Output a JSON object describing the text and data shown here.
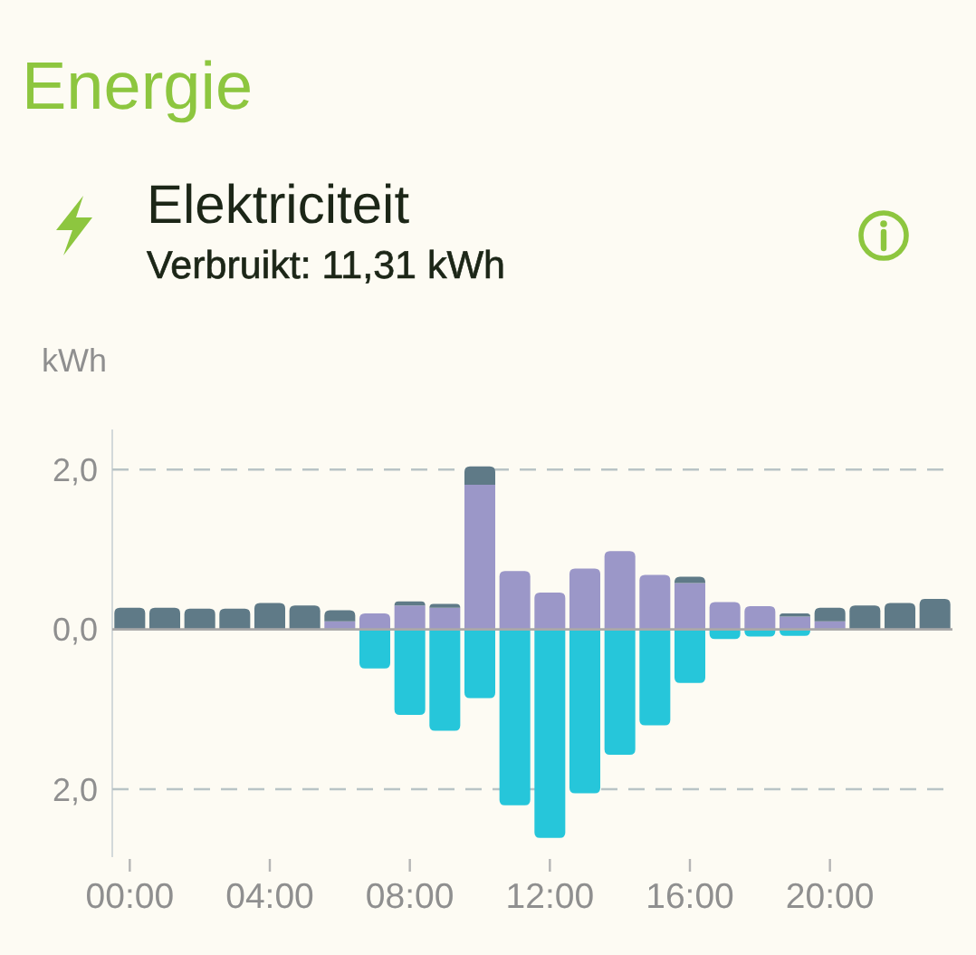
{
  "chart_data": {
    "type": "bar",
    "title": "Energie",
    "subtitle": "Elektriciteit",
    "annotations": [
      "Verbruikt: 11,31 kWh"
    ],
    "ylabel": "kWh",
    "x": [
      0,
      1,
      2,
      3,
      4,
      5,
      6,
      7,
      8,
      9,
      10,
      11,
      12,
      13,
      14,
      15,
      16,
      17,
      18,
      19,
      20,
      21,
      22,
      23
    ],
    "xlim": [
      -0.5,
      23.5
    ],
    "xticks": [
      {
        "value": 0,
        "label": "00:00"
      },
      {
        "value": 4,
        "label": "04:00"
      },
      {
        "value": 8,
        "label": "08:00"
      },
      {
        "value": 12,
        "label": "12:00"
      },
      {
        "value": 16,
        "label": "16:00"
      },
      {
        "value": 20,
        "label": "20:00"
      }
    ],
    "ylim": [
      -2.85,
      2.5
    ],
    "yticks": [
      {
        "value": -2,
        "label": "2,0"
      },
      {
        "value": 0,
        "label": "0,0"
      },
      {
        "value": 2,
        "label": "2,0"
      }
    ],
    "stacked": true,
    "grid": "y",
    "series": [
      {
        "color": "#9b97c8",
        "values": [
          null,
          null,
          null,
          null,
          null,
          null,
          0.1,
          0.2,
          0.3,
          0.27,
          1.81,
          0.73,
          0.46,
          0.76,
          0.98,
          0.68,
          0.58,
          0.34,
          0.29,
          0.16,
          0.1,
          null,
          null,
          null
        ]
      },
      {
        "color": "#5f7a87",
        "values": [
          0.27,
          0.27,
          0.26,
          0.26,
          0.33,
          0.3,
          0.14,
          null,
          0.05,
          0.05,
          0.23,
          null,
          null,
          null,
          null,
          null,
          0.08,
          null,
          null,
          0.04,
          0.17,
          0.3,
          0.33,
          0.38
        ]
      },
      {
        "color": "#26c6da",
        "values": [
          null,
          null,
          null,
          null,
          null,
          null,
          null,
          -0.49,
          -1.07,
          -1.27,
          -0.86,
          -2.2,
          -2.61,
          -2.05,
          -1.57,
          -1.2,
          -0.67,
          -0.12,
          -0.09,
          -0.08,
          null,
          null,
          null,
          null
        ]
      }
    ]
  }
}
